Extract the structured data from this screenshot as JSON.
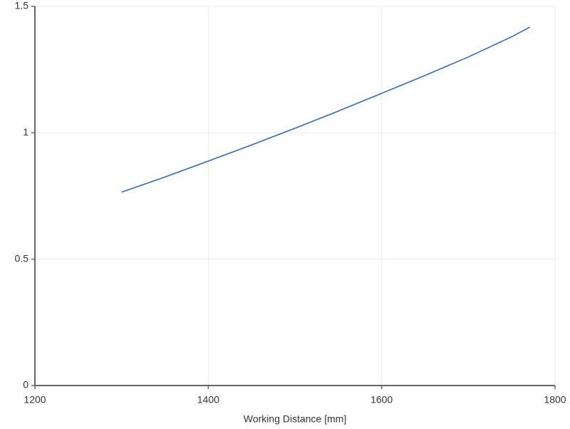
{
  "chart_data": {
    "type": "line",
    "x_label": "Working Distance [mm]",
    "x": [
      1300,
      1350,
      1400,
      1450,
      1500,
      1550,
      1600,
      1650,
      1700,
      1750,
      1771
    ],
    "series": [
      {
        "color": "#3366cc",
        "values": [
          0.765,
          0.825,
          0.888,
          0.952,
          1.018,
          1.086,
          1.156,
          1.227,
          1.3,
          1.38,
          1.418
        ]
      }
    ],
    "xlim": [
      1200,
      1800
    ],
    "xticks": [
      1200,
      1400,
      1600,
      1800
    ],
    "ylim": [
      0,
      1.5
    ],
    "yticks": [
      0,
      0.5,
      1,
      1.5
    ],
    "grid": true
  }
}
